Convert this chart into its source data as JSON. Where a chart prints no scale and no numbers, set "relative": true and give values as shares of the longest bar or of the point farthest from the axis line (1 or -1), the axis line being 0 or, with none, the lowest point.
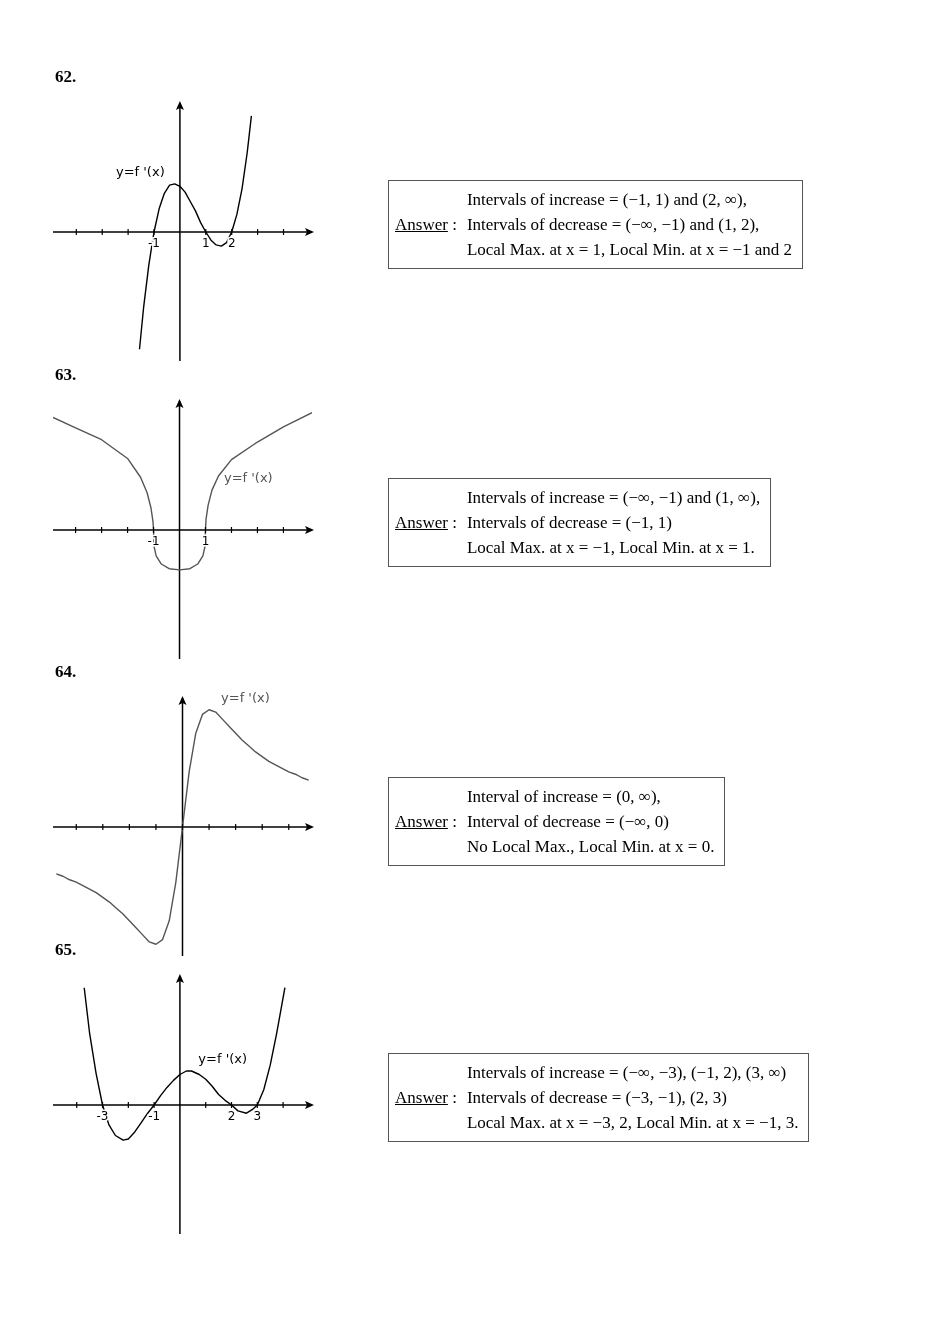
{
  "chart_data": [
    {
      "type": "line",
      "title": "62.",
      "relative": true,
      "xlim": [
        -4.9,
        5.1
      ],
      "xticks": [
        {
          "value": -4,
          "label": null
        },
        {
          "value": -3,
          "label": null
        },
        {
          "value": -2,
          "label": null
        },
        -1,
        1,
        2,
        {
          "value": 3,
          "label": null
        },
        {
          "value": 4,
          "label": null
        }
      ],
      "x": [
        -1.56,
        -1.4,
        -1.2,
        -1,
        -0.8,
        -0.6,
        -0.4,
        -0.2,
        0,
        0.2,
        0.4,
        0.6,
        0.8,
        1,
        1.2,
        1.4,
        1.6,
        1.8,
        2,
        2.2,
        2.4,
        2.6,
        2.76
      ],
      "series": [
        {
          "name": "y=f '(x)",
          "color": "#000000",
          "values": [
            -1,
            -0.64,
            -0.28,
            0,
            0.2,
            0.33,
            0.4,
            0.41,
            0.39,
            0.34,
            0.26,
            0.18,
            0.08,
            0,
            -0.07,
            -0.11,
            -0.12,
            -0.09,
            0,
            0.15,
            0.37,
            0.68,
            0.99
          ]
        }
      ]
    },
    {
      "type": "other",
      "annotations": [
        "Answer",
        ":",
        "Intervals of increase = (−1, 1) and (2, ∞),",
        "Intervals of decrease = (−∞, −1) and (1, 2),",
        "Local Max. at x = 1,  Local Min. at x = −1 and 2"
      ]
    },
    {
      "type": "line",
      "title": "63.",
      "relative": true,
      "xlim": [
        -4.87,
        5.1
      ],
      "xticks": [
        {
          "value": -4,
          "label": null
        },
        {
          "value": -3,
          "label": null
        },
        {
          "value": -2,
          "label": null
        },
        -1,
        1,
        {
          "value": 2,
          "label": null
        },
        {
          "value": 3,
          "label": null
        },
        {
          "value": 4,
          "label": null
        }
      ],
      "x": [
        -4.87,
        -4,
        -3,
        -2,
        -1.5,
        -1.25,
        -1.1,
        -1.02,
        -1,
        -0.98,
        -0.9,
        -0.7,
        -0.4,
        0,
        0.4,
        0.7,
        0.9,
        0.98,
        1,
        1.02,
        1.1,
        1.25,
        1.5,
        2,
        3,
        4,
        5.1
      ],
      "series": [
        {
          "name": "y=f '(x)",
          "color": "#555555",
          "values": [
            0.96,
            0.87,
            0.77,
            0.61,
            0.45,
            0.32,
            0.19,
            0.07,
            0,
            -0.14,
            -0.22,
            -0.29,
            -0.33,
            -0.34,
            -0.33,
            -0.29,
            -0.22,
            -0.14,
            0,
            0.09,
            0.21,
            0.34,
            0.46,
            0.6,
            0.75,
            0.88,
            1
          ]
        }
      ]
    },
    {
      "type": "other",
      "annotations": [
        "Answer",
        ":",
        "Intervals of increase = (−∞, −1) and (1, ∞),",
        "Intervals of decrease = (−1, 1)",
        "Local Max. at x = −1,  Local Min. at x = 1."
      ]
    },
    {
      "type": "line",
      "title": "64.",
      "relative": true,
      "categories": [
        null,
        null,
        null,
        null,
        null,
        null,
        null,
        null,
        null,
        null,
        null,
        null,
        null,
        null,
        null,
        null,
        null,
        null,
        null,
        null,
        null,
        null,
        null,
        null,
        null,
        null,
        null,
        null,
        null,
        null,
        null,
        null,
        null,
        null,
        null,
        null,
        null,
        null,
        null
      ],
      "series": [
        {
          "name": "y=f '(x)",
          "color": "#555555",
          "values": [
            -0.4,
            -0.42,
            -0.45,
            -0.47,
            -0.5,
            -0.53,
            -0.56,
            -0.6,
            -0.64,
            -0.69,
            -0.74,
            -0.8,
            -0.86,
            -0.92,
            -0.98,
            -1,
            -0.96,
            -0.8,
            -0.47,
            0,
            0.47,
            0.8,
            0.96,
            1,
            0.98,
            0.92,
            0.86,
            0.8,
            0.74,
            0.69,
            0.64,
            0.6,
            0.56,
            0.53,
            0.5,
            0.47,
            0.45,
            0.42,
            0.4
          ]
        }
      ]
    },
    {
      "type": "other",
      "annotations": [
        "Answer",
        ":",
        "Interval of increase = (0, ∞),",
        "Interval of decrease = (−∞, 0)",
        "No Local Max.,  Local Min. at x = 0."
      ]
    },
    {
      "type": "line",
      "title": "65.",
      "relative": true,
      "xlim": [
        -4.92,
        5.12
      ],
      "xticks": [
        {
          "value": -4,
          "label": null
        },
        -3,
        {
          "value": -2,
          "label": null
        },
        -1,
        {
          "value": 1,
          "label": null
        },
        2,
        3,
        {
          "value": 4,
          "label": null
        }
      ],
      "x": [
        -3.71,
        -3.5,
        -3.25,
        -3,
        -2.75,
        -2.5,
        -2.2,
        -2,
        -1.75,
        -1.5,
        -1.25,
        -1,
        -0.75,
        -0.5,
        -0.25,
        0,
        0.25,
        0.45,
        0.75,
        1,
        1.25,
        1.5,
        1.75,
        2,
        2.25,
        2.58,
        2.8,
        3,
        3.25,
        3.5,
        3.75,
        4.07
      ],
      "series": [
        {
          "name": "y=f '(x)",
          "color": "#000000",
          "values": [
            1,
            0.61,
            0.27,
            0,
            -0.17,
            -0.26,
            -0.3,
            -0.29,
            -0.23,
            -0.15,
            -0.07,
            0,
            0.08,
            0.15,
            0.21,
            0.26,
            0.29,
            0.29,
            0.26,
            0.22,
            0.16,
            0.09,
            0.04,
            0,
            -0.05,
            -0.07,
            -0.04,
            0,
            0.13,
            0.34,
            0.61,
            1
          ]
        }
      ]
    },
    {
      "type": "other",
      "annotations": [
        "Answer",
        ":",
        "Intervals of increase = (−∞, −3), (−1, 2), (3, ∞)",
        "Intervals of decrease = (−3, −1), (2, 3)",
        "Local Max. at x = −3, 2,  Local Min. at x = −1, 3."
      ]
    }
  ]
}
